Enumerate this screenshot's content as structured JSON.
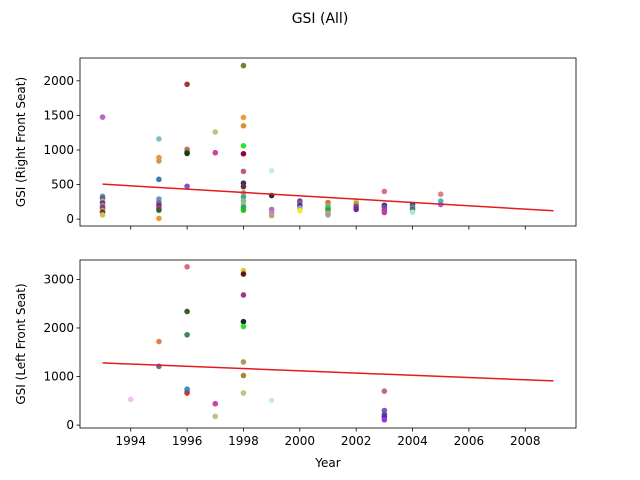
{
  "figure": {
    "title": "GSI (All)"
  },
  "chart_data": [
    {
      "type": "scatter",
      "ylabel": "GSI (Right Front Seat)",
      "xlabel": "",
      "xlim": [
        1992.2,
        2009.8
      ],
      "ylim": [
        -100,
        2330
      ],
      "x_ticks": [
        1994,
        1996,
        1998,
        2000,
        2002,
        2004,
        2006,
        2008
      ],
      "x_tick_labels_visible": false,
      "y_ticks": [
        0,
        500,
        1000,
        1500,
        2000
      ],
      "y_tick_labels": [
        "0",
        "500",
        "1000",
        "1500",
        "2000"
      ],
      "trend": {
        "color": "#e41a1c",
        "x": [
          1993,
          2009
        ],
        "y": [
          505,
          120
        ]
      },
      "points": [
        {
          "x": 1993,
          "y": 1475,
          "color": "#b567c9"
        },
        {
          "x": 1993,
          "y": 330,
          "color": "#4fae8f"
        },
        {
          "x": 1993,
          "y": 300,
          "color": "#6b4fa8"
        },
        {
          "x": 1993,
          "y": 260,
          "color": "#c9a34f"
        },
        {
          "x": 1993,
          "y": 230,
          "color": "#1f4f99"
        },
        {
          "x": 1993,
          "y": 200,
          "color": "#d4679b"
        },
        {
          "x": 1993,
          "y": 170,
          "color": "#8a3a7f"
        },
        {
          "x": 1993,
          "y": 140,
          "color": "#3f7f3f"
        },
        {
          "x": 1993,
          "y": 120,
          "color": "#e8a33a"
        },
        {
          "x": 1993,
          "y": 100,
          "color": "#7a2a5a"
        },
        {
          "x": 1993,
          "y": 60,
          "color": "#c6c64a"
        },
        {
          "x": 1995,
          "y": 1160,
          "color": "#7fbfc9"
        },
        {
          "x": 1995,
          "y": 890,
          "color": "#e89a3a"
        },
        {
          "x": 1995,
          "y": 840,
          "color": "#c99a5a"
        },
        {
          "x": 1995,
          "y": 575,
          "color": "#3a7faf"
        },
        {
          "x": 1995,
          "y": 290,
          "color": "#5aa0c0"
        },
        {
          "x": 1995,
          "y": 240,
          "color": "#9a5aa0"
        },
        {
          "x": 1995,
          "y": 200,
          "color": "#5a3a8a"
        },
        {
          "x": 1995,
          "y": 160,
          "color": "#c0306a"
        },
        {
          "x": 1995,
          "y": 130,
          "color": "#3a5a3a"
        },
        {
          "x": 1995,
          "y": 10,
          "color": "#e8a020"
        },
        {
          "x": 1996,
          "y": 1950,
          "color": "#a03a3a"
        },
        {
          "x": 1996,
          "y": 1010,
          "color": "#e06a6a"
        },
        {
          "x": 1996,
          "y": 970,
          "color": "#3a8a3a"
        },
        {
          "x": 1996,
          "y": 950,
          "color": "#1a3a1a"
        },
        {
          "x": 1996,
          "y": 475,
          "color": "#8a50c0"
        },
        {
          "x": 1997,
          "y": 1260,
          "color": "#c0c080"
        },
        {
          "x": 1997,
          "y": 960,
          "color": "#d040a0"
        },
        {
          "x": 1998,
          "y": 2220,
          "color": "#6a8a2a"
        },
        {
          "x": 1998,
          "y": 1470,
          "color": "#e0a040"
        },
        {
          "x": 1998,
          "y": 1350,
          "color": "#e09030"
        },
        {
          "x": 1998,
          "y": 1060,
          "color": "#30e030"
        },
        {
          "x": 1998,
          "y": 945,
          "color": "#8a0a3a"
        },
        {
          "x": 1998,
          "y": 690,
          "color": "#c05a8a"
        },
        {
          "x": 1998,
          "y": 520,
          "color": "#3a3a3a"
        },
        {
          "x": 1998,
          "y": 470,
          "color": "#6a2a4a"
        },
        {
          "x": 1998,
          "y": 380,
          "color": "#a0a060"
        },
        {
          "x": 1998,
          "y": 320,
          "color": "#4aa0a0"
        },
        {
          "x": 1998,
          "y": 260,
          "color": "#80c080"
        },
        {
          "x": 1998,
          "y": 210,
          "color": "#a0c080"
        },
        {
          "x": 1998,
          "y": 170,
          "color": "#30a070"
        },
        {
          "x": 1998,
          "y": 130,
          "color": "#20c020"
        },
        {
          "x": 1999,
          "y": 700,
          "color": "#c0f0e0"
        },
        {
          "x": 1999,
          "y": 340,
          "color": "#3a2a2a"
        },
        {
          "x": 1999,
          "y": 140,
          "color": "#b070c0"
        },
        {
          "x": 1999,
          "y": 90,
          "color": "#c080c0"
        },
        {
          "x": 1999,
          "y": 50,
          "color": "#c0a080"
        },
        {
          "x": 2000,
          "y": 260,
          "color": "#6a4a8a"
        },
        {
          "x": 2000,
          "y": 230,
          "color": "#8a5aa0"
        },
        {
          "x": 2000,
          "y": 190,
          "color": "#3a3a6a"
        },
        {
          "x": 2000,
          "y": 160,
          "color": "#9a9ae0"
        },
        {
          "x": 2000,
          "y": 120,
          "color": "#f0f020"
        },
        {
          "x": 2001,
          "y": 240,
          "color": "#e06a30"
        },
        {
          "x": 2001,
          "y": 200,
          "color": "#8ab060"
        },
        {
          "x": 2001,
          "y": 160,
          "color": "#30c070"
        },
        {
          "x": 2001,
          "y": 130,
          "color": "#20a040"
        },
        {
          "x": 2001,
          "y": 90,
          "color": "#c0a060"
        },
        {
          "x": 2001,
          "y": 60,
          "color": "#a0a0a0"
        },
        {
          "x": 2002,
          "y": 250,
          "color": "#e0c050"
        },
        {
          "x": 2002,
          "y": 220,
          "color": "#a0a050"
        },
        {
          "x": 2002,
          "y": 180,
          "color": "#8a3a9a"
        },
        {
          "x": 2002,
          "y": 140,
          "color": "#6a2a9a"
        },
        {
          "x": 2003,
          "y": 400,
          "color": "#e06a8a"
        },
        {
          "x": 2003,
          "y": 200,
          "color": "#3a3a8a"
        },
        {
          "x": 2003,
          "y": 170,
          "color": "#6a4aa0"
        },
        {
          "x": 2003,
          "y": 130,
          "color": "#a040c0"
        },
        {
          "x": 2003,
          "y": 95,
          "color": "#c040a0"
        },
        {
          "x": 2004,
          "y": 210,
          "color": "#2a4a8a"
        },
        {
          "x": 2004,
          "y": 175,
          "color": "#6a8aa0"
        },
        {
          "x": 2004,
          "y": 140,
          "color": "#5a6a7a"
        },
        {
          "x": 2004,
          "y": 100,
          "color": "#a0f0d0"
        },
        {
          "x": 2005,
          "y": 360,
          "color": "#e08080"
        },
        {
          "x": 2005,
          "y": 260,
          "color": "#40c0c0"
        },
        {
          "x": 2005,
          "y": 210,
          "color": "#a06ac0"
        }
      ]
    },
    {
      "type": "scatter",
      "ylabel": "GSI (Left Front Seat)",
      "xlabel": "Year",
      "xlim": [
        1992.2,
        2009.8
      ],
      "ylim": [
        -60,
        3400
      ],
      "x_ticks": [
        1994,
        1996,
        1998,
        2000,
        2002,
        2004,
        2006,
        2008
      ],
      "x_tick_labels": [
        "1994",
        "1996",
        "1998",
        "2000",
        "2002",
        "2004",
        "2006",
        "2008"
      ],
      "y_ticks": [
        0,
        1000,
        2000,
        3000
      ],
      "y_tick_labels": [
        "0",
        "1000",
        "2000",
        "3000"
      ],
      "trend": {
        "color": "#e41a1c",
        "x": [
          1993,
          2009
        ],
        "y": [
          1280,
          910
        ]
      },
      "points": [
        {
          "x": 1994,
          "y": 530,
          "color": "#f0c0f0"
        },
        {
          "x": 1995,
          "y": 1720,
          "color": "#e08050"
        },
        {
          "x": 1995,
          "y": 1210,
          "color": "#6a6aa0"
        },
        {
          "x": 1996,
          "y": 3260,
          "color": "#e06a7a"
        },
        {
          "x": 1996,
          "y": 2340,
          "color": "#3a5a2a"
        },
        {
          "x": 1996,
          "y": 1860,
          "color": "#3a8a5a"
        },
        {
          "x": 1996,
          "y": 740,
          "color": "#3a8ae0"
        },
        {
          "x": 1996,
          "y": 700,
          "color": "#1a9ae0"
        },
        {
          "x": 1996,
          "y": 660,
          "color": "#c03a3a"
        },
        {
          "x": 1997,
          "y": 440,
          "color": "#d040a0"
        },
        {
          "x": 1997,
          "y": 180,
          "color": "#c0c080"
        },
        {
          "x": 1998,
          "y": 3180,
          "color": "#e0c040"
        },
        {
          "x": 1998,
          "y": 3110,
          "color": "#5a1a1a"
        },
        {
          "x": 1998,
          "y": 2680,
          "color": "#a03a7a"
        },
        {
          "x": 1998,
          "y": 2130,
          "color": "#1a2a1a"
        },
        {
          "x": 1998,
          "y": 2030,
          "color": "#30e030"
        },
        {
          "x": 1998,
          "y": 1300,
          "color": "#a0a060"
        },
        {
          "x": 1998,
          "y": 1020,
          "color": "#a08a30"
        },
        {
          "x": 1998,
          "y": 660,
          "color": "#c0c080"
        },
        {
          "x": 1999,
          "y": 510,
          "color": "#c0f0e0"
        },
        {
          "x": 2003,
          "y": 700,
          "color": "#c06a8a"
        },
        {
          "x": 2003,
          "y": 300,
          "color": "#8a50c0"
        },
        {
          "x": 2003,
          "y": 220,
          "color": "#6a4aa0"
        },
        {
          "x": 2003,
          "y": 170,
          "color": "#3a3aa0"
        },
        {
          "x": 2003,
          "y": 110,
          "color": "#a030e0"
        }
      ]
    }
  ]
}
